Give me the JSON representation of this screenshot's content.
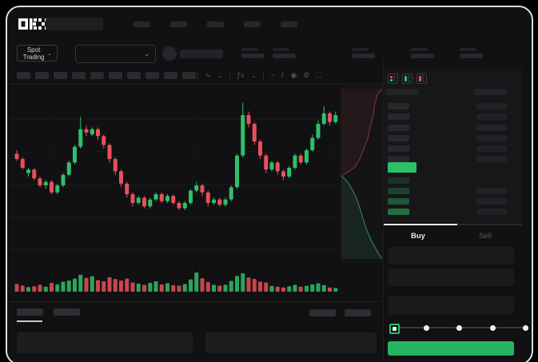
{
  "app": {
    "brand": "OKX",
    "accent_green": "#2abf68",
    "accent_red": "#e8505b"
  },
  "header": {
    "nav_placeholder_count": 5
  },
  "subheader": {
    "market_selector": "Spot Trading",
    "chevron": "⌄",
    "stat_group_count": 5
  },
  "toolbar": {
    "interval_chip_count": 10,
    "icons": [
      {
        "name": "divider",
        "glyph": "|"
      },
      {
        "name": "candle-style-icon",
        "glyph": "∿"
      },
      {
        "name": "chevron-down-icon",
        "glyph": "⌄"
      },
      {
        "name": "divider",
        "glyph": "|"
      },
      {
        "name": "indicators-icon",
        "glyph": "ƒx"
      },
      {
        "name": "chevron-down-icon",
        "glyph": "⌄"
      },
      {
        "name": "divider",
        "glyph": "|"
      },
      {
        "name": "line-tool-icon",
        "glyph": "~"
      },
      {
        "name": "compare-icon",
        "glyph": "⫽"
      },
      {
        "name": "camera-icon",
        "glyph": "◉"
      },
      {
        "name": "settings-icon",
        "glyph": "⚙"
      },
      {
        "name": "fullscreen-icon",
        "glyph": "⛶"
      }
    ]
  },
  "chart_data": {
    "type": "candlestick",
    "title": "",
    "xlabel": "",
    "ylabel": "",
    "price_scale": {
      "min": 0,
      "max": 100,
      "note": "normalized; no axis labels visible in mockup"
    },
    "grid": {
      "h_gridlines": 5,
      "v_gridlines": 3
    },
    "colors": {
      "up": "#2fbf6b",
      "down": "#e8505b"
    },
    "candles": [
      [
        63,
        65,
        59,
        60
      ],
      [
        60,
        61,
        54,
        55
      ],
      [
        52,
        55,
        50,
        54
      ],
      [
        54,
        55,
        48,
        49
      ],
      [
        49,
        50,
        44,
        45
      ],
      [
        45,
        48,
        43,
        47
      ],
      [
        47,
        48,
        40,
        41
      ],
      [
        41,
        46,
        40,
        45
      ],
      [
        45,
        52,
        44,
        51
      ],
      [
        51,
        59,
        50,
        58
      ],
      [
        58,
        68,
        57,
        67
      ],
      [
        67,
        84,
        66,
        77
      ],
      [
        77,
        79,
        73,
        75
      ],
      [
        74,
        78,
        73,
        77
      ],
      [
        77,
        78,
        71,
        73
      ],
      [
        73,
        74,
        66,
        68
      ],
      [
        68,
        69,
        58,
        60
      ],
      [
        60,
        61,
        51,
        53
      ],
      [
        53,
        54,
        44,
        46
      ],
      [
        46,
        47,
        38,
        40
      ],
      [
        40,
        41,
        33,
        35
      ],
      [
        35,
        39,
        34,
        38
      ],
      [
        38,
        39,
        32,
        33
      ],
      [
        33,
        38,
        32,
        37
      ],
      [
        37,
        41,
        36,
        40
      ],
      [
        40,
        41,
        35,
        36
      ],
      [
        36,
        40,
        35,
        39
      ],
      [
        39,
        40,
        34,
        35
      ],
      [
        35,
        36,
        31,
        32
      ],
      [
        32,
        36,
        31,
        35
      ],
      [
        35,
        43,
        34,
        42
      ],
      [
        42,
        47,
        41,
        45
      ],
      [
        45,
        46,
        39,
        41
      ],
      [
        41,
        42,
        33,
        35
      ],
      [
        35,
        38,
        34,
        37
      ],
      [
        37,
        38,
        33,
        34
      ],
      [
        34,
        38,
        33,
        37
      ],
      [
        37,
        45,
        36,
        44
      ],
      [
        44,
        63,
        43,
        62
      ],
      [
        62,
        92,
        61,
        85
      ],
      [
        85,
        87,
        78,
        80
      ],
      [
        80,
        81,
        68,
        70
      ],
      [
        70,
        71,
        60,
        62
      ],
      [
        62,
        63,
        52,
        54
      ],
      [
        54,
        59,
        53,
        58
      ],
      [
        58,
        59,
        51,
        53
      ],
      [
        53,
        54,
        48,
        50
      ],
      [
        50,
        56,
        49,
        55
      ],
      [
        55,
        63,
        54,
        62
      ],
      [
        62,
        63,
        57,
        58
      ],
      [
        58,
        66,
        57,
        65
      ],
      [
        65,
        74,
        64,
        72
      ],
      [
        72,
        82,
        71,
        80
      ],
      [
        80,
        90,
        79,
        86
      ],
      [
        86,
        87,
        79,
        81
      ],
      [
        81,
        87,
        80,
        85
      ]
    ],
    "volumes": [
      40,
      32,
      24,
      28,
      36,
      26,
      46,
      38,
      52,
      58,
      68,
      88,
      72,
      80,
      60,
      54,
      75,
      66,
      58,
      68,
      48,
      42,
      36,
      46,
      54,
      38,
      44,
      34,
      32,
      40,
      64,
      100,
      70,
      50,
      36,
      32,
      36,
      56,
      82,
      96,
      74,
      66,
      52,
      48,
      30,
      26,
      22,
      28,
      36,
      26,
      30,
      38,
      44,
      34,
      22,
      20
    ]
  },
  "depth": {
    "type": "area",
    "orientation": "vertical",
    "asks_color": "#e8505b",
    "bids_color": "#4fd2a8",
    "asks_points": [
      [
        53,
        4
      ],
      [
        47,
        12
      ],
      [
        44,
        22
      ],
      [
        42,
        38
      ],
      [
        38,
        52
      ],
      [
        35,
        66
      ],
      [
        30,
        80
      ],
      [
        25,
        92
      ],
      [
        19,
        102
      ],
      [
        9,
        109
      ],
      [
        2,
        113
      ]
    ],
    "bids_points": [
      [
        2,
        113
      ],
      [
        10,
        121
      ],
      [
        15,
        129
      ],
      [
        21,
        141
      ],
      [
        25,
        153
      ],
      [
        29,
        166
      ],
      [
        33,
        179
      ],
      [
        39,
        193
      ],
      [
        45,
        204
      ],
      [
        49,
        211
      ],
      [
        53,
        217
      ]
    ]
  },
  "orderbook": {
    "view_icons": [
      "book-all-icon",
      "book-bids-icon",
      "book-asks-icon"
    ],
    "ask_row_count": 6,
    "bid_row_count": 4,
    "bid_rows_with_amount": 3,
    "mid_price_color": "#2cc169",
    "bid_tint_opacities": [
      0.16,
      0.26,
      0.38,
      0.52
    ]
  },
  "trade_panel": {
    "tabs": [
      {
        "label": "Buy",
        "active": true
      },
      {
        "label": "Sell",
        "active": false
      }
    ],
    "field_count": 3,
    "slider_stop_count": 5,
    "slider_value_index": 0,
    "submit_color": "#25b55f"
  },
  "bottom_section": {
    "tab_count": 2,
    "right_chip_count": 2,
    "table_placeholder_count": 2
  }
}
